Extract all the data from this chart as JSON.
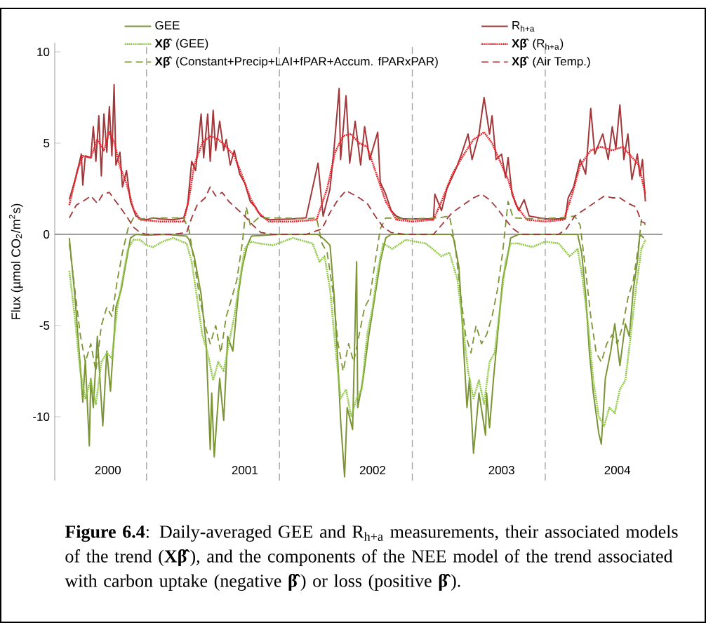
{
  "chart_data": {
    "type": "line",
    "ylabel": "Flux (µmol CO$_{2}$/m$^{2}$s)",
    "xlim": [
      "2000-04-24",
      "2004-11-18"
    ],
    "xticks": [
      {
        "value": "2000-09-17",
        "label": "2000"
      },
      {
        "value": "2001-09-28",
        "label": "2001"
      },
      {
        "value": "2002-09-14",
        "label": "2002"
      },
      {
        "value": "2003-09-03",
        "label": "2003"
      },
      {
        "value": "2004-07-17",
        "label": "2004"
      }
    ],
    "ylim": [
      -13.5,
      10.5
    ],
    "yticks": [
      -10,
      -5,
      0,
      5,
      10
    ],
    "legend": "top",
    "ref_lines": [
      {
        "axis": "y",
        "value": 0,
        "color": "#808080",
        "line_style": "solid"
      },
      {
        "axis": "x",
        "value": "2001-01-01",
        "color": "#a6a6a6",
        "line_style": "dashed"
      },
      {
        "axis": "x",
        "value": "2002-01-01",
        "color": "#a6a6a6",
        "line_style": "dashed"
      },
      {
        "axis": "x",
        "value": "2003-01-01",
        "color": "#a6a6a6",
        "line_style": "dashed"
      },
      {
        "axis": "x",
        "value": "2004-01-01",
        "color": "#a6a6a6",
        "line_style": "dashed"
      }
    ],
    "annotations": [
      "**Figure 6.4**: Daily-averaged GEE and R$_{h+a}$ measurements, their associated models of the trend (**Xβ̂**), and the components of the NEE model of the trend associated with carbon uptake (negative **β̂**) or loss (positive **β̂**)."
    ],
    "series": [
      {
        "name": "GEE",
        "color": "#7b9436",
        "line_style": "solid",
        "x": [
          "2000-06-03",
          "2000-06-18",
          "2000-07-03",
          "2000-07-10",
          "2000-07-17",
          "2000-07-28",
          "2000-08-01",
          "2000-08-08",
          "2000-08-19",
          "2000-09-03",
          "2000-09-14",
          "2000-09-24",
          "2000-10-09",
          "2000-10-24",
          "2000-10-31",
          "2000-11-18",
          "2000-12-03",
          "2001-01-01",
          "2001-02-25",
          "2001-04-21",
          "2001-04-28",
          "2001-05-12",
          "2001-05-31",
          "2001-06-14",
          "2001-06-25",
          "2001-06-29",
          "2001-07-06",
          "2001-07-21",
          "2001-08-01",
          "2001-08-12",
          "2001-08-26",
          "2001-09-10",
          "2001-09-21",
          "2001-10-05",
          "2001-10-16",
          "2002-01-01",
          "2002-04-17",
          "2002-05-05",
          "2002-05-20",
          "2002-05-31",
          "2002-06-11",
          "2002-06-18",
          "2002-06-29",
          "2002-07-06",
          "2002-07-21",
          "2002-08-01",
          "2002-08-04",
          "2002-08-19",
          "2002-09-03",
          "2002-09-21",
          "2002-10-05",
          "2002-10-20",
          "2002-11-04",
          "2003-04-17",
          "2003-04-24",
          "2003-05-09",
          "2003-05-16",
          "2003-05-31",
          "2003-06-07",
          "2003-06-18",
          "2003-07-03",
          "2003-07-21",
          "2003-07-24",
          "2003-08-01",
          "2003-08-12",
          "2003-08-26",
          "2003-09-06",
          "2003-09-17",
          "2003-09-28",
          "2003-10-20",
          "2004-03-30",
          "2004-04-10",
          "2004-04-21",
          "2004-05-01",
          "2004-05-12",
          "2004-05-27",
          "2004-06-03",
          "2004-06-14",
          "2004-06-29",
          "2004-07-10",
          "2004-07-24",
          "2004-08-08",
          "2004-08-19",
          "2004-08-30",
          "2004-09-10",
          "2004-09-17",
          "2004-09-28"
        ],
        "values": [
          -0.2,
          -3.3,
          -7.2,
          -9.2,
          -6.9,
          -11.6,
          -7.9,
          -9.5,
          -5.6,
          -10.5,
          -6.4,
          -8.6,
          -4.0,
          -3.0,
          -2.2,
          -0.2,
          0.0,
          -0.05,
          0.0,
          -0.1,
          -0.3,
          -1.2,
          -3.3,
          -6.1,
          -11.8,
          -8.7,
          -12.2,
          -7.9,
          -10.2,
          -5.6,
          -6.4,
          -3.3,
          -1.8,
          -0.6,
          -0.1,
          0.0,
          0.0,
          -0.3,
          -0.6,
          -3.3,
          -7.2,
          -10.2,
          -13.3,
          -9.5,
          -10.7,
          -1.5,
          -9.5,
          -7.9,
          -5.6,
          -3.3,
          -1.5,
          -0.2,
          0.0,
          0.0,
          -0.2,
          -1.8,
          -4.1,
          -9.5,
          -7.9,
          -12.0,
          -8.7,
          -11.0,
          -8.7,
          -10.6,
          -7.9,
          -4.9,
          -2.5,
          -1.5,
          -0.2,
          0.0,
          0.0,
          -1.0,
          -3.3,
          -6.4,
          -8.7,
          -10.9,
          -11.5,
          -7.9,
          -6.4,
          -4.9,
          -7.2,
          -4.9,
          -5.6,
          -3.0,
          -1.5,
          0.0,
          -0.2
        ]
      },
      {
        "name": "R$_{h+a}$",
        "color": "#a3383b",
        "line_style": "solid",
        "x": [
          "2000-06-03",
          "2000-06-22",
          "2000-07-06",
          "2000-07-10",
          "2000-07-17",
          "2000-08-01",
          "2000-08-08",
          "2000-08-15",
          "2000-08-23",
          "2000-08-30",
          "2000-09-06",
          "2000-09-14",
          "2000-09-21",
          "2000-09-28",
          "2000-10-04",
          "2000-10-09",
          "2000-10-20",
          "2000-10-27",
          "2000-11-07",
          "2000-11-18",
          "2000-12-03",
          "2000-12-17",
          "2001-01-01",
          "2001-01-19",
          "2001-02-07",
          "2001-03-15",
          "2001-04-13",
          "2001-04-24",
          "2001-05-05",
          "2001-05-16",
          "2001-05-23",
          "2001-05-31",
          "2001-06-07",
          "2001-06-18",
          "2001-06-25",
          "2001-07-03",
          "2001-07-10",
          "2001-07-21",
          "2001-08-01",
          "2001-08-08",
          "2001-08-19",
          "2001-08-30",
          "2001-09-14",
          "2001-09-28",
          "2001-10-13",
          "2001-10-27",
          "2001-11-11",
          "2001-12-03",
          "2002-02-07",
          "2002-03-15",
          "2002-04-17",
          "2002-05-01",
          "2002-05-20",
          "2002-05-31",
          "2002-06-14",
          "2002-06-18",
          "2002-07-03",
          "2002-07-13",
          "2002-07-28",
          "2002-08-12",
          "2002-08-23",
          "2002-09-06",
          "2002-09-28",
          "2002-10-05",
          "2002-10-20",
          "2002-11-04",
          "2002-11-18",
          "2002-12-06",
          "2003-01-19",
          "2003-02-28",
          "2003-03-04",
          "2003-03-22",
          "2003-04-06",
          "2003-05-01",
          "2003-05-16",
          "2003-06-03",
          "2003-06-14",
          "2003-07-03",
          "2003-07-17",
          "2003-08-01",
          "2003-08-08",
          "2003-08-19",
          "2003-09-03",
          "2003-09-14",
          "2003-09-21",
          "2003-10-02",
          "2003-10-20",
          "2003-11-04",
          "2003-11-18",
          "2004-01-01",
          "2004-02-25",
          "2004-03-04",
          "2004-03-19",
          "2004-04-06",
          "2004-04-21",
          "2004-05-05",
          "2004-05-16",
          "2004-06-07",
          "2004-06-22",
          "2004-07-03",
          "2004-07-13",
          "2004-07-24",
          "2004-08-04",
          "2004-08-15",
          "2004-08-26",
          "2004-09-10",
          "2004-09-17",
          "2004-09-24",
          "2004-10-02"
        ],
        "values": [
          1.9,
          3.2,
          4.4,
          2.7,
          4.3,
          4.2,
          5.9,
          4.0,
          6.5,
          3.2,
          6.6,
          4.5,
          7.0,
          4.3,
          8.2,
          3.8,
          4.5,
          2.6,
          3.5,
          1.8,
          1.0,
          0.85,
          0.8,
          0.9,
          0.85,
          0.8,
          0.9,
          1.6,
          4.0,
          3.5,
          5.0,
          6.6,
          4.2,
          6.6,
          4.0,
          6.8,
          4.6,
          6.2,
          4.6,
          5.2,
          3.8,
          4.6,
          3.3,
          2.8,
          1.8,
          1.5,
          1.0,
          0.8,
          0.85,
          0.9,
          3.9,
          1.0,
          2.5,
          4.7,
          8.0,
          4.1,
          7.6,
          3.9,
          6.2,
          3.8,
          5.9,
          4.1,
          5.6,
          2.85,
          2.2,
          1.3,
          1.0,
          0.85,
          0.85,
          0.85,
          2.2,
          1.3,
          2.5,
          3.6,
          4.4,
          5.5,
          4.1,
          5.5,
          7.5,
          5.5,
          6.5,
          4.1,
          4.4,
          3.1,
          4.2,
          2.2,
          1.3,
          1.9,
          1.0,
          0.85,
          0.85,
          2.0,
          2.6,
          4.1,
          3.3,
          6.9,
          4.4,
          5.5,
          4.1,
          5.9,
          4.7,
          7.1,
          4.1,
          5.5,
          3.0,
          4.4,
          3.2,
          4.1,
          1.8
        ]
      },
      {
        "name": "**Xβ̂** (GEE)",
        "color": "#8dc63f",
        "line_style": "dotted",
        "x": [
          "2000-06-03",
          "2000-06-18",
          "2000-07-03",
          "2000-07-17",
          "2000-08-01",
          "2000-08-15",
          "2000-08-30",
          "2000-09-14",
          "2000-09-28",
          "2000-10-13",
          "2000-10-27",
          "2000-11-11",
          "2000-11-26",
          "2000-12-14",
          "2001-01-01",
          "2001-01-19",
          "2001-02-14",
          "2001-03-15",
          "2001-04-21",
          "2001-05-05",
          "2001-05-20",
          "2001-06-03",
          "2001-06-18",
          "2001-07-03",
          "2001-07-17",
          "2001-08-01",
          "2001-08-15",
          "2001-08-30",
          "2001-09-14",
          "2001-09-28",
          "2001-10-13",
          "2001-11-07",
          "2001-12-14",
          "2002-02-07",
          "2002-04-02",
          "2002-04-21",
          "2002-05-05",
          "2002-05-20",
          "2002-06-03",
          "2002-06-18",
          "2002-07-03",
          "2002-07-17",
          "2002-08-01",
          "2002-08-15",
          "2002-08-30",
          "2002-09-14",
          "2002-09-28",
          "2002-10-13",
          "2002-11-07",
          "2002-12-14",
          "2003-02-07",
          "2003-03-22",
          "2003-04-13",
          "2003-05-05",
          "2003-05-20",
          "2003-06-03",
          "2003-06-18",
          "2003-07-03",
          "2003-07-17",
          "2003-08-01",
          "2003-08-15",
          "2003-08-30",
          "2003-09-14",
          "2003-09-28",
          "2003-10-20",
          "2003-11-26",
          "2004-01-01",
          "2004-02-07",
          "2004-03-08",
          "2004-03-30",
          "2004-04-13",
          "2004-04-28",
          "2004-05-12",
          "2004-05-27",
          "2004-06-11",
          "2004-06-25",
          "2004-07-10",
          "2004-07-24",
          "2004-08-08",
          "2004-08-23",
          "2004-09-06",
          "2004-09-21",
          "2004-10-02"
        ],
        "values": [
          -2.0,
          -4.5,
          -7.5,
          -9.0,
          -8.0,
          -9.3,
          -7.0,
          -6.5,
          -6.8,
          -4.0,
          -2.5,
          -0.8,
          -0.3,
          -0.3,
          -0.6,
          -0.7,
          -0.4,
          -0.2,
          -0.5,
          -1.5,
          -3.5,
          -5.5,
          -6.5,
          -8.0,
          -7.0,
          -7.5,
          -6.0,
          -4.5,
          -2.5,
          -0.8,
          -0.4,
          -0.5,
          -0.6,
          -0.2,
          -0.5,
          -1.5,
          -1.2,
          -3.0,
          -6.0,
          -9.0,
          -8.5,
          -10.0,
          -9.0,
          -8.5,
          -5.5,
          -4.0,
          -2.0,
          -0.5,
          -0.8,
          -0.3,
          -0.5,
          -1.2,
          -1.0,
          -2.5,
          -5.0,
          -7.5,
          -9.0,
          -8.0,
          -9.3,
          -7.0,
          -6.5,
          -4.0,
          -1.5,
          -0.5,
          -0.5,
          -0.7,
          -0.4,
          -0.5,
          -1.2,
          -0.8,
          -2.5,
          -5.0,
          -8.0,
          -10.0,
          -10.5,
          -9.5,
          -9.8,
          -8.5,
          -8.0,
          -5.5,
          -3.0,
          -0.8,
          -0.3
        ]
      },
      {
        "name": "**Xβ̂** (R$_{h+a}$)",
        "color": "#ed1c24",
        "line_style": "dotted",
        "x": [
          "2000-06-03",
          "2000-06-25",
          "2000-07-10",
          "2000-08-01",
          "2000-08-19",
          "2000-09-06",
          "2000-09-21",
          "2000-10-05",
          "2000-10-20",
          "2000-11-07",
          "2000-11-26",
          "2000-12-14",
          "2001-02-07",
          "2001-04-13",
          "2001-04-28",
          "2001-05-12",
          "2001-06-03",
          "2001-06-25",
          "2001-07-17",
          "2001-08-08",
          "2001-08-30",
          "2001-09-21",
          "2001-10-13",
          "2001-11-04",
          "2001-12-03",
          "2002-02-07",
          "2002-04-13",
          "2002-05-12",
          "2002-06-03",
          "2002-06-25",
          "2002-07-17",
          "2002-08-08",
          "2002-08-30",
          "2002-09-21",
          "2002-10-20",
          "2002-11-18",
          "2003-01-01",
          "2003-02-28",
          "2003-03-22",
          "2003-04-21",
          "2003-05-20",
          "2003-06-18",
          "2003-07-17",
          "2003-08-08",
          "2003-08-30",
          "2003-09-21",
          "2003-10-13",
          "2003-11-11",
          "2004-01-01",
          "2004-02-21",
          "2004-03-15",
          "2004-04-06",
          "2004-05-05",
          "2004-06-03",
          "2004-07-03",
          "2004-08-01",
          "2004-08-23",
          "2004-09-14",
          "2004-10-02"
        ],
        "values": [
          1.6,
          3.5,
          4.3,
          4.2,
          5.2,
          4.6,
          5.6,
          5.0,
          3.7,
          2.8,
          1.4,
          0.8,
          0.7,
          0.7,
          2.0,
          3.8,
          5.0,
          5.4,
          5.2,
          4.8,
          4.3,
          3.2,
          2.0,
          1.2,
          0.7,
          0.7,
          0.8,
          2.5,
          4.5,
          5.4,
          5.5,
          5.0,
          4.8,
          3.5,
          1.8,
          0.8,
          0.7,
          0.8,
          1.8,
          3.3,
          4.3,
          5.2,
          5.6,
          5.0,
          4.0,
          3.0,
          1.6,
          0.8,
          0.7,
          0.8,
          2.2,
          3.8,
          4.6,
          4.8,
          4.6,
          4.8,
          4.3,
          3.8,
          2.2
        ]
      },
      {
        "name": "**Xβ̂** (Constant+Precip+LAI+fPAR+Accum. fPARxPAR)",
        "color": "#7b9436",
        "line_style": "dashed",
        "x": [
          "2000-06-03",
          "2000-06-18",
          "2000-07-03",
          "2000-07-17",
          "2000-08-01",
          "2000-08-15",
          "2000-08-30",
          "2000-09-14",
          "2000-09-28",
          "2000-10-13",
          "2000-10-27",
          "2000-11-11",
          "2000-11-26",
          "2000-12-14",
          "2001-02-07",
          "2001-04-13",
          "2001-04-28",
          "2001-05-12",
          "2001-05-27",
          "2001-06-11",
          "2001-06-25",
          "2001-07-10",
          "2001-07-24",
          "2001-08-08",
          "2001-08-23",
          "2001-09-06",
          "2001-09-21",
          "2001-10-02",
          "2001-10-13",
          "2001-11-04",
          "2002-01-01",
          "2002-03-15",
          "2002-04-13",
          "2002-04-28",
          "2002-05-12",
          "2002-05-27",
          "2002-06-11",
          "2002-06-25",
          "2002-07-10",
          "2002-07-24",
          "2002-08-08",
          "2002-08-23",
          "2002-09-06",
          "2002-09-21",
          "2002-10-05",
          "2002-10-20",
          "2003-01-01",
          "2003-03-15",
          "2003-04-13",
          "2003-04-28",
          "2003-05-12",
          "2003-05-27",
          "2003-06-11",
          "2003-06-25",
          "2003-07-10",
          "2003-07-24",
          "2003-08-08",
          "2003-08-23",
          "2003-09-06",
          "2003-09-21",
          "2003-10-05",
          "2003-11-26",
          "2004-02-07",
          "2004-03-22",
          "2004-04-06",
          "2004-04-21",
          "2004-05-05",
          "2004-05-20",
          "2004-06-03",
          "2004-06-18",
          "2004-07-03",
          "2004-07-17",
          "2004-08-01",
          "2004-08-15",
          "2004-08-30",
          "2004-09-14",
          "2004-09-21",
          "2004-10-02"
        ],
        "values": [
          -0.5,
          -3.0,
          -5.5,
          -7.0,
          -6.0,
          -7.5,
          -5.0,
          -4.0,
          -4.5,
          -2.5,
          -1.0,
          0.3,
          0.9,
          0.85,
          0.9,
          0.9,
          0.2,
          -1.5,
          -3.5,
          -5.0,
          -6.0,
          -5.0,
          -6.5,
          -4.5,
          -3.5,
          -2.5,
          -0.5,
          1.5,
          0.5,
          0.9,
          0.9,
          0.85,
          0.9,
          -0.5,
          -1.0,
          -3.0,
          -6.0,
          -7.5,
          -6.0,
          -7.0,
          -5.5,
          -4.0,
          -3.5,
          -1.5,
          0.3,
          0.9,
          0.85,
          0.9,
          1.0,
          -0.5,
          -3.0,
          -5.5,
          -6.5,
          -5.0,
          -6.0,
          -5.5,
          -4.5,
          -3.0,
          -1.0,
          1.8,
          0.9,
          0.85,
          0.9,
          1.0,
          0.5,
          -2.0,
          -4.5,
          -6.5,
          -7.0,
          -6.0,
          -5.5,
          -6.0,
          -5.0,
          -3.5,
          -2.5,
          -0.5,
          0.8,
          0.5
        ]
      },
      {
        "name": "**Xβ̂** (Air Temp.)",
        "color": "#a3383b",
        "line_style": "dashed",
        "x": [
          "2000-06-03",
          "2000-06-22",
          "2000-07-10",
          "2000-08-01",
          "2000-08-19",
          "2000-09-03",
          "2000-09-21",
          "2000-10-05",
          "2000-10-20",
          "2000-11-07",
          "2000-11-26",
          "2000-12-14",
          "2001-01-01",
          "2001-03-15",
          "2001-04-21",
          "2001-05-05",
          "2001-05-20",
          "2001-06-11",
          "2001-06-25",
          "2001-07-10",
          "2001-07-28",
          "2001-08-15",
          "2001-09-06",
          "2001-09-28",
          "2001-10-20",
          "2001-11-11",
          "2001-12-14",
          "2002-03-15",
          "2002-04-28",
          "2002-05-20",
          "2002-06-11",
          "2002-07-03",
          "2002-07-21",
          "2002-08-08",
          "2002-08-30",
          "2002-09-21",
          "2002-10-13",
          "2002-11-04",
          "2002-12-14",
          "2003-02-28",
          "2003-03-22",
          "2003-04-21",
          "2003-05-20",
          "2003-06-18",
          "2003-07-10",
          "2003-08-01",
          "2003-08-23",
          "2003-09-14",
          "2003-10-05",
          "2003-10-27",
          "2004-02-07",
          "2004-02-28",
          "2004-03-22",
          "2004-04-21",
          "2004-05-20",
          "2004-06-11",
          "2004-07-03",
          "2004-07-24",
          "2004-08-15",
          "2004-09-06",
          "2004-09-21",
          "2004-10-02"
        ],
        "values": [
          0.9,
          1.6,
          1.8,
          2.1,
          1.7,
          2.2,
          2.3,
          1.9,
          1.5,
          1.0,
          0.4,
          0.1,
          0.0,
          0.0,
          0.1,
          0.9,
          1.6,
          2.0,
          2.6,
          2.1,
          2.3,
          1.8,
          1.4,
          1.0,
          0.5,
          0.1,
          0.0,
          0.0,
          0.3,
          1.2,
          1.9,
          2.4,
          2.2,
          2.0,
          1.7,
          1.0,
          0.4,
          0.1,
          0.0,
          0.0,
          0.5,
          1.2,
          1.6,
          2.0,
          2.2,
          1.9,
          1.4,
          0.8,
          0.3,
          0.0,
          0.0,
          0.3,
          1.0,
          1.4,
          1.8,
          2.1,
          2.0,
          2.0,
          1.7,
          1.5,
          0.7,
          0.6
        ]
      }
    ]
  }
}
